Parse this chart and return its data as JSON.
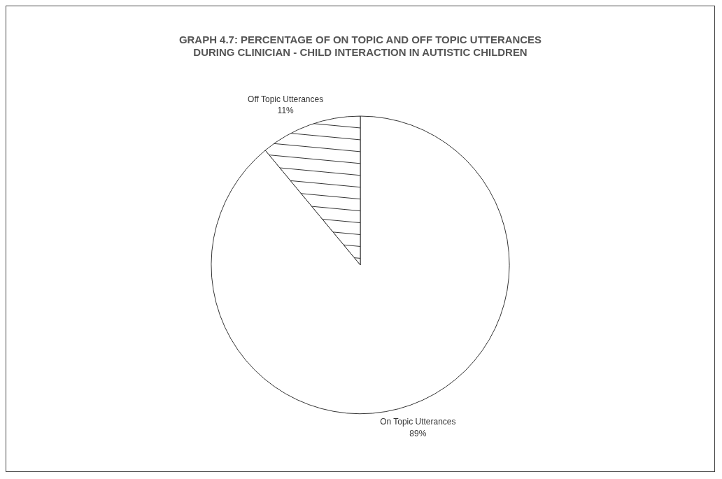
{
  "chart_data": {
    "type": "pie",
    "title": [
      "GRAPH 4.7: PERCENTAGE OF ON TOPIC AND OFF TOPIC UTTERANCES",
      "DURING CLINICIAN - CHILD INTERACTION IN AUTISTIC CHILDREN"
    ],
    "categories": [
      "On Topic Utterances",
      "Off Topic Utterances"
    ],
    "values": [
      89,
      11
    ],
    "colors": [
      "#ffffff",
      "#ffffff"
    ],
    "value_labels": [
      "89%",
      "11%"
    ],
    "legend": false
  }
}
